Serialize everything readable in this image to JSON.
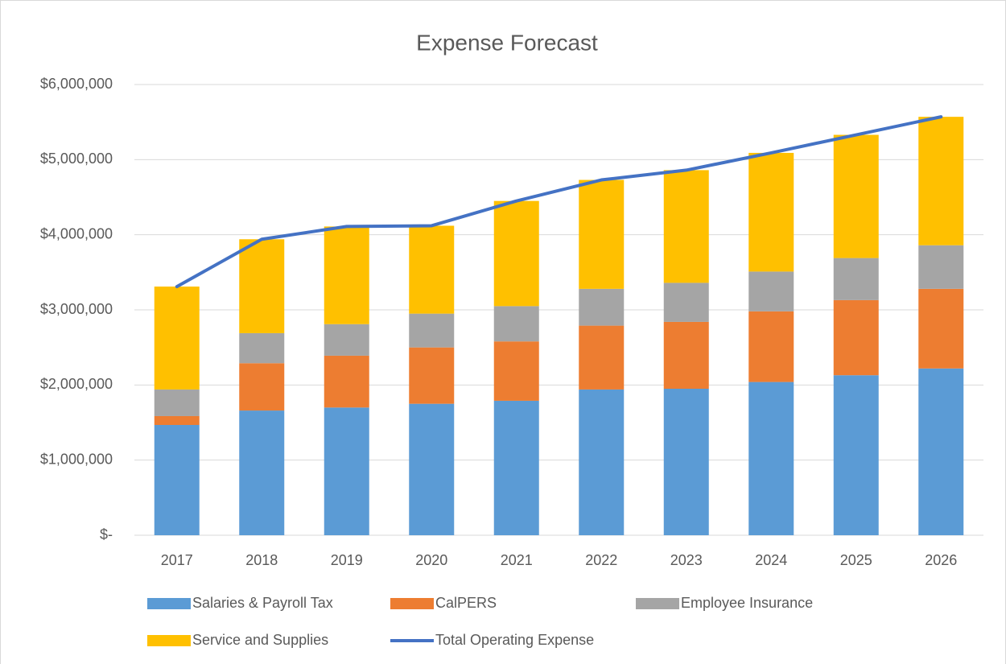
{
  "chart_data": {
    "type": "bar",
    "stacked": true,
    "title": "Expense Forecast",
    "categories": [
      "2017",
      "2018",
      "2019",
      "2020",
      "2021",
      "2022",
      "2023",
      "2024",
      "2025",
      "2026"
    ],
    "series": [
      {
        "name": "Salaries & Payroll Tax",
        "color": "#5b9bd5",
        "values": [
          1468000,
          1660000,
          1700000,
          1750000,
          1790000,
          1940000,
          1950000,
          2040000,
          2130000,
          2220000
        ]
      },
      {
        "name": "CalPERS",
        "color": "#ed7d31",
        "values": [
          118000,
          630000,
          690000,
          750000,
          790000,
          850000,
          890000,
          940000,
          1000000,
          1060000
        ]
      },
      {
        "name": "Employee Insurance",
        "color": "#a5a5a5",
        "values": [
          354000,
          400000,
          420000,
          450000,
          470000,
          490000,
          520000,
          530000,
          560000,
          580000
        ]
      },
      {
        "name": "Service and Supplies",
        "color": "#ffc000",
        "values": [
          1370000,
          1250000,
          1300000,
          1170000,
          1400000,
          1450000,
          1500000,
          1580000,
          1640000,
          1710000
        ]
      },
      {
        "name": "Total Operating Expense",
        "type": "line",
        "color": "#4472c4",
        "values": [
          3310000,
          3940000,
          4110000,
          4120000,
          4450000,
          4730000,
          4860000,
          5090000,
          5330000,
          5570000
        ]
      }
    ],
    "ylim": [
      0,
      6000000
    ],
    "yticks": [
      {
        "value": 0,
        "label": "$-"
      },
      {
        "value": 1000000,
        "label": "$1,000,000"
      },
      {
        "value": 2000000,
        "label": "$2,000,000"
      },
      {
        "value": 3000000,
        "label": "$3,000,000"
      },
      {
        "value": 4000000,
        "label": "$4,000,000"
      },
      {
        "value": 5000000,
        "label": "$5,000,000"
      },
      {
        "value": 6000000,
        "label": "$6,000,000"
      }
    ],
    "grid": true,
    "legend": "bottom"
  }
}
